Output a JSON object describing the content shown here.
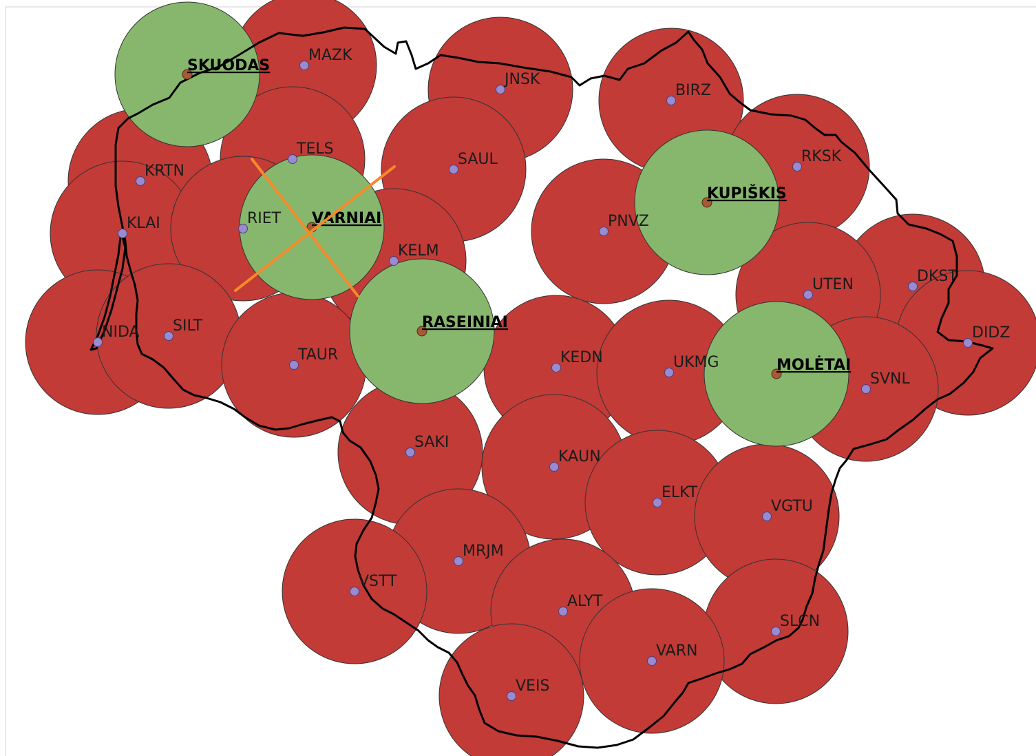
{
  "map": {
    "colors": {
      "coverage_existing": "#c23b37",
      "coverage_candidate": "#87b76d",
      "circle_stroke": "#333333",
      "station_point": "#9a8ad0",
      "site_point": "#a85a34",
      "border": "#000000",
      "rejected_mark": "#f58a2a"
    },
    "stations": [
      {
        "code": "MAZK"
      },
      {
        "code": "JNSK"
      },
      {
        "code": "BIRZ"
      },
      {
        "code": "KRTN"
      },
      {
        "code": "TELS"
      },
      {
        "code": "SAUL"
      },
      {
        "code": "RKSK"
      },
      {
        "code": "KLAI"
      },
      {
        "code": "RIET"
      },
      {
        "code": "PNVZ"
      },
      {
        "code": "KELM"
      },
      {
        "code": "DKST"
      },
      {
        "code": "UTEN"
      },
      {
        "code": "NIDA"
      },
      {
        "code": "SILT"
      },
      {
        "code": "DIDZ"
      },
      {
        "code": "TAUR"
      },
      {
        "code": "KEDN"
      },
      {
        "code": "UKMG"
      },
      {
        "code": "SVNL"
      },
      {
        "code": "SAKI"
      },
      {
        "code": "KAUN"
      },
      {
        "code": "ELKT"
      },
      {
        "code": "VGTU"
      },
      {
        "code": "MRJM"
      },
      {
        "code": "VSTT"
      },
      {
        "code": "ALYT"
      },
      {
        "code": "SLCN"
      },
      {
        "code": "VARN"
      },
      {
        "code": "VEIS"
      }
    ],
    "candidate_sites": [
      {
        "name": "SKUODAS",
        "rejected": false
      },
      {
        "name": "VARNIAI",
        "rejected": true
      },
      {
        "name": "KUPIŠKIS",
        "rejected": false
      },
      {
        "name": "RASEINIAI",
        "rejected": false
      },
      {
        "name": "MOLĖTAI",
        "rejected": false
      }
    ]
  }
}
